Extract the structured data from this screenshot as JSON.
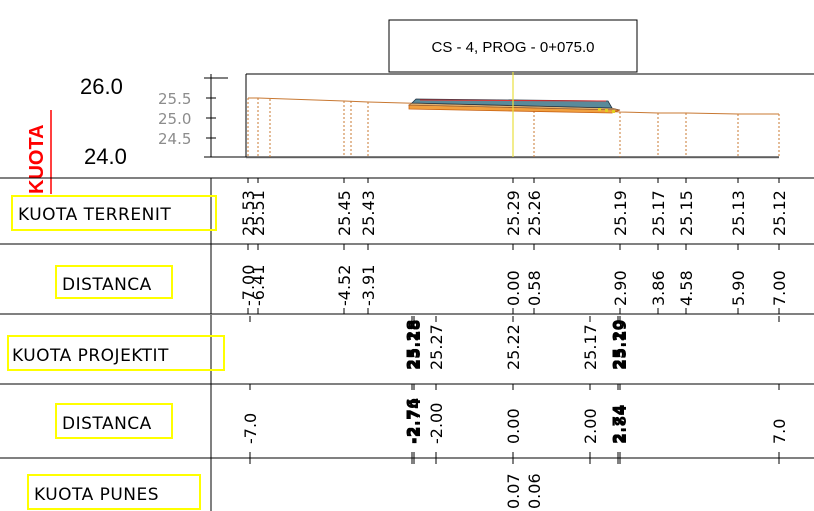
{
  "title": "CS - 4, PROG - 0+075.0",
  "axis_label": "KUOTA",
  "elevation_major": [
    "26.0",
    "24.0"
  ],
  "elevation_minor": [
    "25.5",
    "25.0",
    "24.5"
  ],
  "rows": {
    "terrain_label": "KUOTA TERRENIT",
    "distance_label": "DISTANCA",
    "design_label": "KUOTA PROJEKTIT",
    "distance2_label": "DISTANCA",
    "works_label": "KUOTA PUNES"
  },
  "terrain_points": [
    {
      "offset": "-7.00",
      "elev": "25.53"
    },
    {
      "offset": "-6.41",
      "elev": "25.51"
    },
    {
      "offset": "-4.52",
      "elev": "25.45"
    },
    {
      "offset": "-3.91",
      "elev": "25.43"
    },
    {
      "offset": "0.00",
      "elev": "25.29"
    },
    {
      "offset": "0.58",
      "elev": "25.26"
    },
    {
      "offset": "2.90",
      "elev": "25.19"
    },
    {
      "offset": "3.86",
      "elev": "25.17"
    },
    {
      "offset": "4.58",
      "elev": "25.15"
    },
    {
      "offset": "5.90",
      "elev": "25.13"
    },
    {
      "offset": "7.00",
      "elev": "25.12"
    }
  ],
  "design_points": [
    {
      "offset": "-7.0",
      "elev": ""
    },
    {
      "offset": "-2.76",
      "elev": "25.28"
    },
    {
      "offset": "-2.74",
      "elev": "25.18"
    },
    {
      "offset": "-2.00",
      "elev": "25.27"
    },
    {
      "offset": "0.00",
      "elev": "25.22"
    },
    {
      "offset": "2.00",
      "elev": "25.17"
    },
    {
      "offset": "2.74",
      "elev": "25.20"
    },
    {
      "offset": "2.84",
      "elev": "25.19"
    },
    {
      "offset": "7.0",
      "elev": ""
    }
  ],
  "works_values": [
    "0.07",
    "0.06"
  ]
}
